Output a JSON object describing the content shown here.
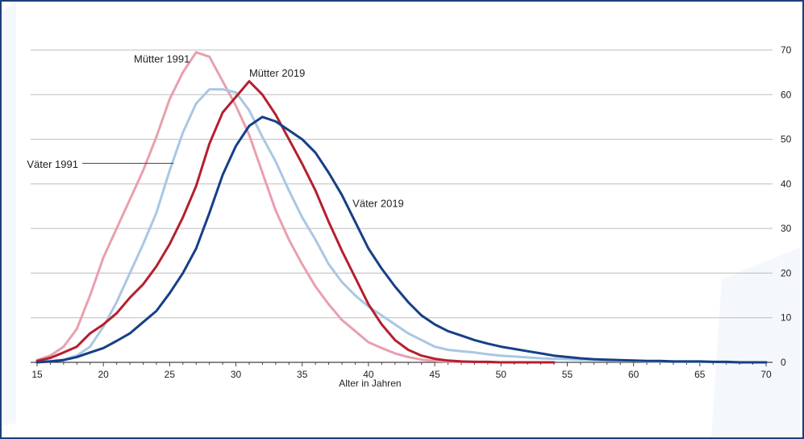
{
  "chart_data": {
    "type": "line",
    "xlabel": "Alter in Jahren",
    "ylabel": "",
    "xlim": [
      15,
      70
    ],
    "ylim": [
      0,
      70
    ],
    "x_ticks": [
      15,
      20,
      25,
      30,
      35,
      40,
      45,
      50,
      55,
      60,
      65,
      70
    ],
    "y_ticks": [
      0,
      10,
      20,
      30,
      40,
      50,
      60,
      70
    ],
    "grid": "horizontal",
    "legend": "none",
    "series": [
      {
        "name": "Mütter 1991",
        "color": "#e8a0ad",
        "x": [
          15,
          16,
          17,
          18,
          19,
          20,
          21,
          22,
          23,
          24,
          25,
          26,
          27,
          28,
          29,
          30,
          31,
          32,
          33,
          34,
          35,
          36,
          37,
          38,
          39,
          40,
          41,
          42,
          43,
          44,
          45,
          46,
          47,
          48,
          49,
          50
        ],
        "y": [
          0.5,
          1.5,
          3.5,
          7.5,
          15,
          23.5,
          30,
          36.5,
          43,
          50.5,
          59,
          65,
          69.5,
          68.5,
          63,
          57.5,
          51,
          42.5,
          34,
          27.5,
          22,
          17,
          13,
          9.5,
          7,
          4.5,
          3.2,
          2,
          1.2,
          0.6,
          0.3,
          0.2,
          0.1,
          0.1,
          0,
          0
        ]
      },
      {
        "name": "Mütter 2019",
        "color": "#b51f2e",
        "x": [
          15,
          16,
          17,
          18,
          19,
          20,
          21,
          22,
          23,
          24,
          25,
          26,
          27,
          28,
          29,
          30,
          31,
          32,
          33,
          34,
          35,
          36,
          37,
          38,
          39,
          40,
          41,
          42,
          43,
          44,
          45,
          46,
          47,
          48,
          49,
          50,
          51,
          52,
          53,
          54
        ],
        "y": [
          0.3,
          1,
          2.2,
          3.5,
          6.5,
          8.5,
          11,
          14.5,
          17.5,
          21.5,
          26.5,
          32.5,
          39.5,
          49,
          56,
          59.5,
          63,
          60,
          55.5,
          50,
          44.5,
          38.5,
          31.5,
          25,
          19,
          13,
          8.5,
          5,
          2.8,
          1.5,
          0.8,
          0.4,
          0.2,
          0.1,
          0.1,
          0,
          0,
          0,
          0,
          0
        ]
      },
      {
        "name": "Väter 1991",
        "color": "#a9c7e3",
        "x": [
          15,
          16,
          17,
          18,
          19,
          20,
          21,
          22,
          23,
          24,
          25,
          26,
          27,
          28,
          29,
          30,
          31,
          32,
          33,
          34,
          35,
          36,
          37,
          38,
          39,
          40,
          41,
          42,
          43,
          44,
          45,
          46,
          47,
          48,
          49,
          50,
          51,
          52,
          53,
          54,
          55,
          56,
          57,
          58,
          59,
          60,
          61,
          62,
          63,
          64,
          65,
          66,
          67,
          68,
          69,
          70
        ],
        "y": [
          0.1,
          0.3,
          0.6,
          1.5,
          3.5,
          8,
          13.5,
          20,
          26.5,
          33.5,
          43,
          51.5,
          58,
          61.2,
          61.2,
          60.5,
          56.5,
          50.5,
          45,
          38.5,
          32.5,
          27.5,
          22,
          18,
          15,
          12.5,
          10.5,
          8.5,
          6.5,
          5,
          3.5,
          2.8,
          2.5,
          2.2,
          1.8,
          1.5,
          1.3,
          1.1,
          0.9,
          0.8,
          0.7,
          0.6,
          0.5,
          0.4,
          0.3,
          0.3,
          0.2,
          0.2,
          0.2,
          0.1,
          0.1,
          0.1,
          0,
          0,
          0,
          0
        ]
      },
      {
        "name": "Väter 2019",
        "color": "#163f86",
        "x": [
          15,
          16,
          17,
          18,
          19,
          20,
          21,
          22,
          23,
          24,
          25,
          26,
          27,
          28,
          29,
          30,
          31,
          32,
          33,
          34,
          35,
          36,
          37,
          38,
          39,
          40,
          41,
          42,
          43,
          44,
          45,
          46,
          47,
          48,
          49,
          50,
          51,
          52,
          53,
          54,
          55,
          56,
          57,
          58,
          59,
          60,
          61,
          62,
          63,
          64,
          65,
          66,
          67,
          68,
          69,
          70
        ],
        "y": [
          0,
          0.2,
          0.5,
          1.2,
          2.2,
          3.2,
          4.8,
          6.5,
          9,
          11.5,
          15.5,
          20,
          25.5,
          33.5,
          42,
          48.5,
          53,
          55,
          54,
          52,
          50,
          47,
          42.5,
          37.5,
          31.5,
          25.5,
          21,
          17,
          13.5,
          10.5,
          8.5,
          7,
          6,
          5,
          4.2,
          3.5,
          3,
          2.5,
          2,
          1.5,
          1.2,
          0.9,
          0.7,
          0.6,
          0.5,
          0.4,
          0.3,
          0.3,
          0.2,
          0.2,
          0.2,
          0.1,
          0.1,
          0,
          0,
          0
        ]
      }
    ],
    "annotations": [
      "Mütter 1991",
      "Mütter 2019",
      "Väter 1991",
      "Väter 2019"
    ]
  }
}
